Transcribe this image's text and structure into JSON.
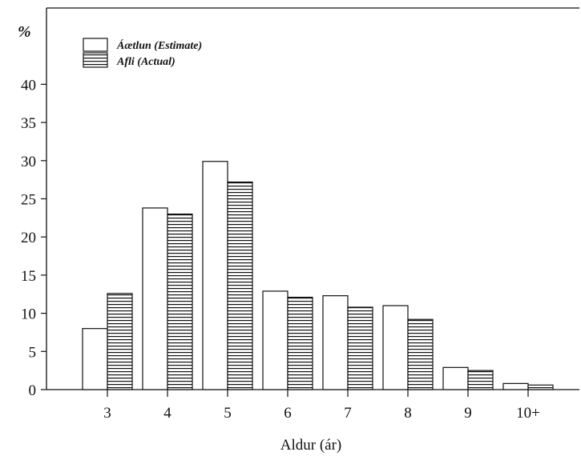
{
  "chart_data": {
    "type": "bar",
    "ylabel": "%",
    "xlabel": "Aldur (ár)",
    "categories": [
      "3",
      "4",
      "5",
      "6",
      "7",
      "8",
      "9",
      "10+"
    ],
    "series": [
      {
        "name": "Áætlun (Estimate)",
        "pattern": "plain",
        "values": [
          8,
          23.8,
          29.9,
          12.9,
          12.3,
          11.0,
          2.9,
          0.8
        ]
      },
      {
        "name": "Afli (Actual)",
        "pattern": "horizontal-stripes",
        "values": [
          12.6,
          23.0,
          27.2,
          12.1,
          10.8,
          9.2,
          2.5,
          0.6
        ]
      }
    ],
    "yticks": [
      0,
      5,
      10,
      15,
      20,
      25,
      30,
      35,
      40
    ],
    "ylim": [
      0,
      50
    ],
    "grid": false,
    "legend_position": "top-left"
  }
}
